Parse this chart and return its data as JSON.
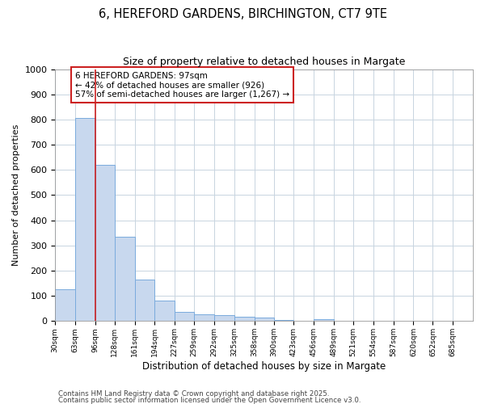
{
  "title": "6, HEREFORD GARDENS, BIRCHINGTON, CT7 9TE",
  "subtitle": "Size of property relative to detached houses in Margate",
  "xlabel": "Distribution of detached houses by size in Margate",
  "ylabel": "Number of detached properties",
  "bin_labels": [
    "30sqm",
    "63sqm",
    "96sqm",
    "128sqm",
    "161sqm",
    "194sqm",
    "227sqm",
    "259sqm",
    "292sqm",
    "325sqm",
    "358sqm",
    "390sqm",
    "423sqm",
    "456sqm",
    "489sqm",
    "521sqm",
    "554sqm",
    "587sqm",
    "620sqm",
    "652sqm",
    "685sqm"
  ],
  "bin_edges": [
    30,
    63,
    96,
    128,
    161,
    194,
    227,
    259,
    292,
    325,
    358,
    390,
    423,
    456,
    489,
    521,
    554,
    587,
    620,
    652,
    685
  ],
  "bar_heights": [
    125,
    805,
    620,
    335,
    165,
    80,
    38,
    28,
    25,
    18,
    13,
    5,
    0,
    8,
    0,
    0,
    0,
    0,
    0,
    0,
    0
  ],
  "bar_color": "#c8d8ee",
  "bar_edge_color": "#7aaBdd",
  "vline_x": 96,
  "vline_color": "#cc2222",
  "ylim": [
    0,
    1000
  ],
  "yticks": [
    0,
    100,
    200,
    300,
    400,
    500,
    600,
    700,
    800,
    900,
    1000
  ],
  "annotation_title": "6 HEREFORD GARDENS: 97sqm",
  "annotation_line2": "← 42% of detached houses are smaller (926)",
  "annotation_line3": "57% of semi-detached houses are larger (1,267) →",
  "annotation_box_color": "#cc2222",
  "footnote1": "Contains HM Land Registry data © Crown copyright and database right 2025.",
  "footnote2": "Contains public sector information licensed under the Open Government Licence v3.0.",
  "bg_color": "#ffffff",
  "plot_bg_color": "#ffffff",
  "grid_color": "#c8d4e0"
}
